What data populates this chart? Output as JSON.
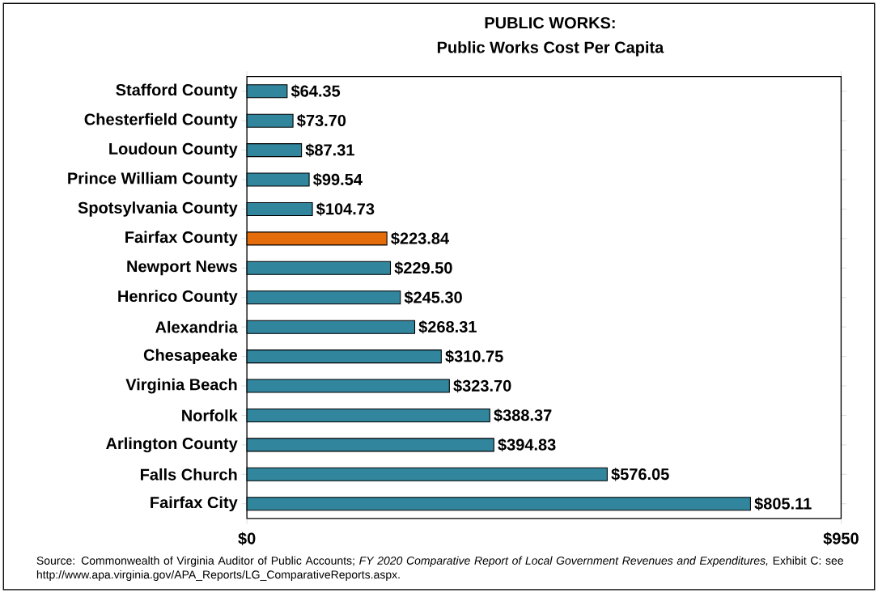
{
  "chart_data": {
    "type": "bar",
    "orientation": "horizontal",
    "title": "PUBLIC WORKS:",
    "subtitle": "Public Works Cost Per Capita",
    "categories": [
      "Stafford County",
      "Chesterfield County",
      "Loudoun County",
      "Prince William County",
      "Spotsylvania County",
      "Fairfax County",
      "Newport News",
      "Henrico County",
      "Alexandria",
      "Chesapeake",
      "Virginia Beach",
      "Norfolk",
      "Arlington County",
      "Falls Church",
      "Fairfax City"
    ],
    "values": [
      64.35,
      73.7,
      87.31,
      99.54,
      104.73,
      223.84,
      229.5,
      245.3,
      268.31,
      310.75,
      323.7,
      388.37,
      394.83,
      576.05,
      805.11
    ],
    "value_labels": [
      "$64.35",
      "$73.70",
      "$87.31",
      "$99.54",
      "$104.73",
      "$223.84",
      "$229.50",
      "$245.30",
      "$268.31",
      "$310.75",
      "$323.70",
      "$388.37",
      "$394.83",
      "$576.05",
      "$805.11"
    ],
    "colors": [
      "#31859c",
      "#31859c",
      "#31859c",
      "#31859c",
      "#31859c",
      "#e46c0a",
      "#31859c",
      "#31859c",
      "#31859c",
      "#31859c",
      "#31859c",
      "#31859c",
      "#31859c",
      "#31859c",
      "#31859c"
    ],
    "xlim": [
      0,
      950
    ],
    "xticks": [
      {
        "value": 0,
        "label": "$0"
      },
      {
        "value": 950,
        "label": "$950"
      }
    ],
    "annotations": [
      "Source: Commonwealth of Virginia Auditor of Public Accounts; *FY 2020 Comparative Report of Local Government Revenues and Expenditures,* Exhibit C: see http://www.apa.virginia.gov/APA_Reports/LG_ComparativeReports.aspx."
    ]
  }
}
